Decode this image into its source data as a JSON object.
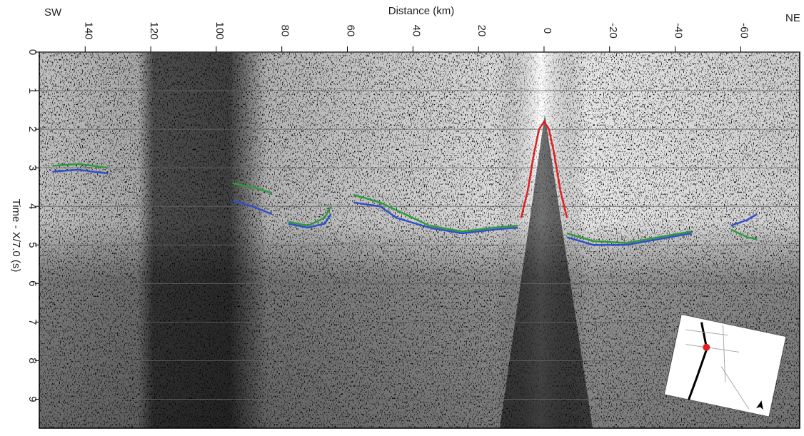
{
  "chart_data": {
    "type": "section",
    "title": "Distance (km)",
    "y_label": "Time - X/7.0 (s)",
    "left_label": "SW",
    "right_label": "NE",
    "xlim": [
      154,
      -78
    ],
    "xticks": [
      140,
      120,
      100,
      80,
      60,
      40,
      20,
      0,
      -20,
      -40,
      -60
    ],
    "ylim": [
      0,
      9.75
    ],
    "yticks": [
      0,
      1,
      2,
      3,
      4,
      5,
      6,
      7,
      8,
      9
    ],
    "grid": true,
    "series": [
      {
        "color": "#e02020",
        "x": [
          7,
          5,
          3,
          1.5,
          0,
          -1.5,
          -3,
          -5,
          -7
        ],
        "values": [
          4.3,
          3.6,
          2.6,
          2.0,
          1.8,
          2.0,
          2.6,
          3.6,
          4.3
        ]
      },
      {
        "color": "#2e9a3c",
        "x": [
          150,
          142,
          133,
          130,
          95,
          89,
          83,
          80,
          78,
          72,
          67,
          65,
          62,
          58,
          50,
          45,
          35,
          25,
          15,
          8,
          5,
          -7,
          -15,
          -25,
          -35,
          -45,
          -50,
          -57,
          -62,
          -65
        ],
        "values": [
          2.95,
          2.9,
          3.0,
          null,
          3.4,
          3.5,
          3.65,
          null,
          4.4,
          4.5,
          4.3,
          4.0,
          null,
          3.7,
          3.9,
          4.1,
          4.5,
          4.65,
          4.55,
          4.5,
          null,
          4.7,
          4.9,
          4.95,
          4.8,
          4.65,
          null,
          4.6,
          4.8,
          4.85
        ]
      },
      {
        "color": "#2f4fc8",
        "x": [
          150,
          142,
          133,
          130,
          95,
          89,
          83,
          80,
          78,
          72,
          67,
          65,
          62,
          58,
          50,
          45,
          35,
          25,
          15,
          8,
          5,
          -7,
          -15,
          -25,
          -35,
          -45,
          -50,
          -57,
          -62,
          -65
        ],
        "values": [
          3.1,
          3.05,
          3.15,
          null,
          3.85,
          4.0,
          4.2,
          null,
          4.45,
          4.55,
          4.45,
          4.2,
          null,
          3.9,
          4.0,
          4.3,
          4.55,
          4.7,
          4.6,
          4.55,
          null,
          4.8,
          5.0,
          5.0,
          4.85,
          4.7,
          null,
          4.5,
          4.35,
          4.2
        ]
      }
    ]
  }
}
